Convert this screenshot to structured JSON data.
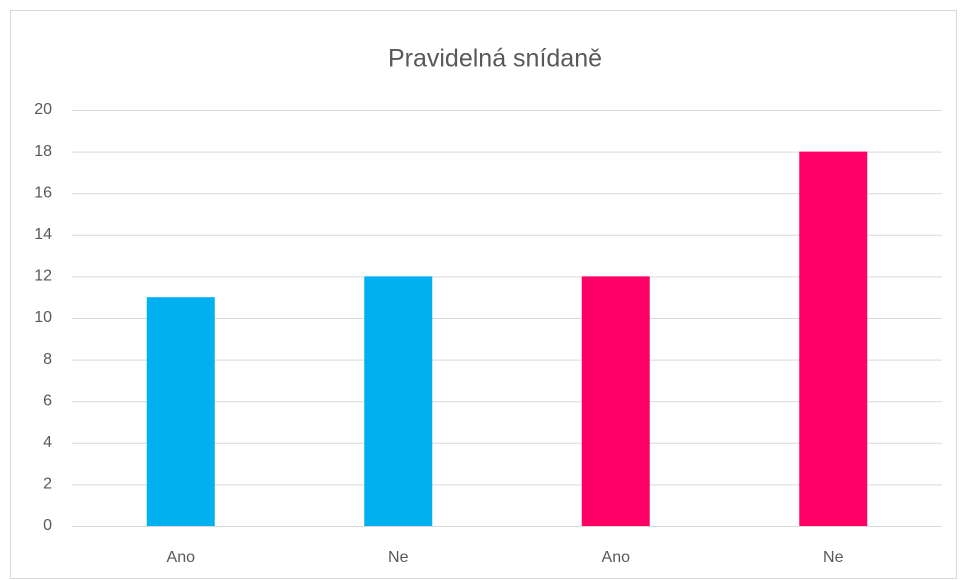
{
  "chart_data": {
    "type": "bar",
    "title": "Pravidelná snídaně",
    "categories": [
      "Ano",
      "Ne",
      "Ano",
      "Ne"
    ],
    "values": [
      11,
      12,
      12,
      18
    ],
    "colors": [
      "#00b0f0",
      "#00b0f0",
      "#ff0066",
      "#ff0066"
    ],
    "ylim": [
      0,
      20
    ],
    "yticks": [
      0,
      2,
      4,
      6,
      8,
      10,
      12,
      14,
      16,
      18,
      20
    ],
    "grid": true
  }
}
